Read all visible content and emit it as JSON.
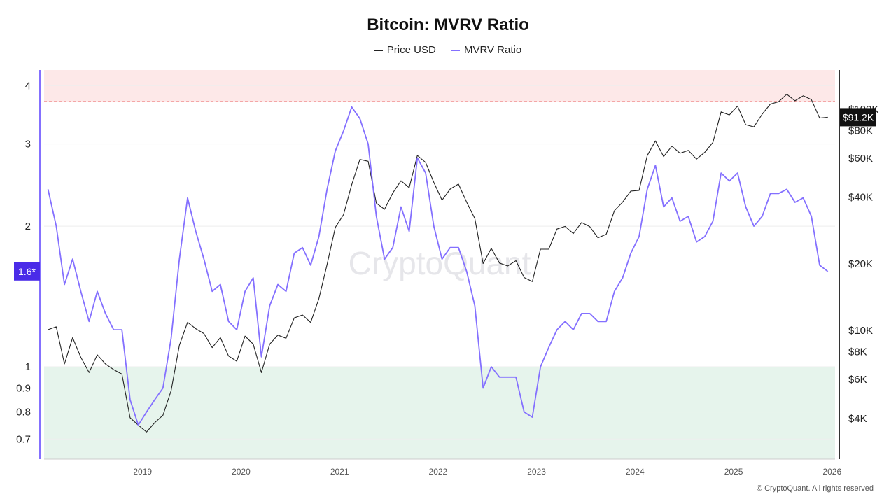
{
  "title": "Bitcoin: MVRV Ratio",
  "legend": [
    {
      "label": "Price USD",
      "color": "#222222"
    },
    {
      "label": "MVRV Ratio",
      "color": "#8470ff"
    }
  ],
  "watermark": "CryptoQuant",
  "footer": "© CryptoQuant. All rights reserved",
  "chart_data": {
    "type": "line",
    "title": "Bitcoin: MVRV Ratio",
    "x_range": [
      "2018-01",
      "2025-12"
    ],
    "x_ticks": [
      "2019",
      "2020",
      "2021",
      "2022",
      "2023",
      "2024",
      "2025",
      "2026"
    ],
    "left_axis": {
      "scale": "log",
      "range": [
        0.634,
        4.32
      ],
      "ticks": [
        0.7,
        0.8,
        0.9,
        1,
        2,
        3,
        4
      ],
      "tick_labels": [
        "0.7",
        "0.8",
        "0.9",
        "1",
        "2",
        "3",
        "4"
      ]
    },
    "right_axis": {
      "scale": "log",
      "range": [
        2600,
        149000
      ],
      "ticks": [
        4000,
        6000,
        8000,
        10000,
        20000,
        40000,
        60000,
        80000,
        100000
      ],
      "tick_labels": [
        "$4K",
        "$6K",
        "$8K",
        "$10K",
        "$20K",
        "$40K",
        "$60K",
        "$80K",
        "$100K"
      ]
    },
    "zones": [
      {
        "name": "overvalued",
        "axis": "left",
        "from": 3.7,
        "to": 4.32,
        "color": "#fde8e8",
        "line_color": "#f08080"
      },
      {
        "name": "undervalued",
        "axis": "left",
        "from": 0.634,
        "to": 1.0,
        "color": "#e6f4ec",
        "line_color": "#5cc45c"
      }
    ],
    "current_labels": {
      "mvrv": "1.6*",
      "price": "$91.2K"
    },
    "grid": true,
    "legend_position": "top",
    "months": [
      "2018-01",
      "2018-02",
      "2018-03",
      "2018-04",
      "2018-05",
      "2018-06",
      "2018-07",
      "2018-08",
      "2018-09",
      "2018-10",
      "2018-11",
      "2018-12",
      "2019-01",
      "2019-02",
      "2019-03",
      "2019-04",
      "2019-05",
      "2019-06",
      "2019-07",
      "2019-08",
      "2019-09",
      "2019-10",
      "2019-11",
      "2019-12",
      "2020-01",
      "2020-02",
      "2020-03",
      "2020-04",
      "2020-05",
      "2020-06",
      "2020-07",
      "2020-08",
      "2020-09",
      "2020-10",
      "2020-11",
      "2020-12",
      "2021-01",
      "2021-02",
      "2021-03",
      "2021-04",
      "2021-05",
      "2021-06",
      "2021-07",
      "2021-08",
      "2021-09",
      "2021-10",
      "2021-11",
      "2021-12",
      "2022-01",
      "2022-02",
      "2022-03",
      "2022-04",
      "2022-05",
      "2022-06",
      "2022-07",
      "2022-08",
      "2022-09",
      "2022-10",
      "2022-11",
      "2022-12",
      "2023-01",
      "2023-02",
      "2023-03",
      "2023-04",
      "2023-05",
      "2023-06",
      "2023-07",
      "2023-08",
      "2023-09",
      "2023-10",
      "2023-11",
      "2023-12",
      "2024-01",
      "2024-02",
      "2024-03",
      "2024-04",
      "2024-05",
      "2024-06",
      "2024-07",
      "2024-08",
      "2024-09",
      "2024-10",
      "2024-11",
      "2024-12",
      "2025-01",
      "2025-02",
      "2025-03",
      "2025-04",
      "2025-05",
      "2025-06",
      "2025-07",
      "2025-08",
      "2025-09",
      "2025-10",
      "2025-11",
      "2025-12"
    ],
    "series": [
      {
        "name": "Price USD",
        "axis": "right",
        "color": "#222222",
        "values": [
          10000,
          10300,
          7000,
          9200,
          7500,
          6400,
          7700,
          7000,
          6600,
          6300,
          4000,
          3700,
          3450,
          3800,
          4100,
          5300,
          8500,
          10800,
          10100,
          9600,
          8300,
          9200,
          7600,
          7200,
          9350,
          8600,
          6400,
          8600,
          9450,
          9140,
          11300,
          11650,
          10780,
          13800,
          19700,
          29000,
          33100,
          45200,
          58800,
          57700,
          37300,
          35000,
          41500,
          47100,
          43800,
          61300,
          57000,
          46300,
          38500,
          43200,
          45500,
          37700,
          31800,
          19900,
          23300,
          20000,
          19400,
          20500,
          17200,
          16500,
          23100,
          23100,
          28500,
          29300,
          27200,
          30500,
          29200,
          26000,
          27000,
          34500,
          37700,
          42300,
          42600,
          61200,
          71300,
          60600,
          67500,
          62700,
          64600,
          59000,
          63300,
          70200,
          96400,
          93400,
          102400,
          84400,
          82500,
          94200,
          104600,
          107100,
          115800,
          108200,
          114000,
          109500,
          90400,
          91200
        ]
      },
      {
        "name": "MVRV Ratio",
        "axis": "left",
        "color": "#8470ff",
        "values": [
          2.4,
          2.0,
          1.5,
          1.7,
          1.45,
          1.25,
          1.45,
          1.3,
          1.2,
          1.2,
          0.85,
          0.75,
          0.8,
          0.85,
          0.9,
          1.15,
          1.7,
          2.3,
          1.95,
          1.7,
          1.45,
          1.5,
          1.25,
          1.2,
          1.45,
          1.55,
          1.05,
          1.35,
          1.5,
          1.45,
          1.75,
          1.8,
          1.65,
          1.9,
          2.4,
          2.9,
          3.2,
          3.6,
          3.4,
          3.0,
          2.1,
          1.7,
          1.8,
          2.2,
          1.95,
          2.8,
          2.6,
          2.0,
          1.7,
          1.8,
          1.8,
          1.6,
          1.35,
          0.9,
          1.0,
          0.95,
          0.95,
          0.95,
          0.8,
          0.78,
          1.0,
          1.1,
          1.2,
          1.25,
          1.2,
          1.3,
          1.3,
          1.25,
          1.25,
          1.45,
          1.55,
          1.75,
          1.9,
          2.4,
          2.7,
          2.2,
          2.3,
          2.05,
          2.1,
          1.85,
          1.9,
          2.05,
          2.6,
          2.5,
          2.6,
          2.2,
          2.0,
          2.1,
          2.35,
          2.35,
          2.4,
          2.25,
          2.3,
          2.1,
          1.65,
          1.6
        ]
      }
    ]
  }
}
